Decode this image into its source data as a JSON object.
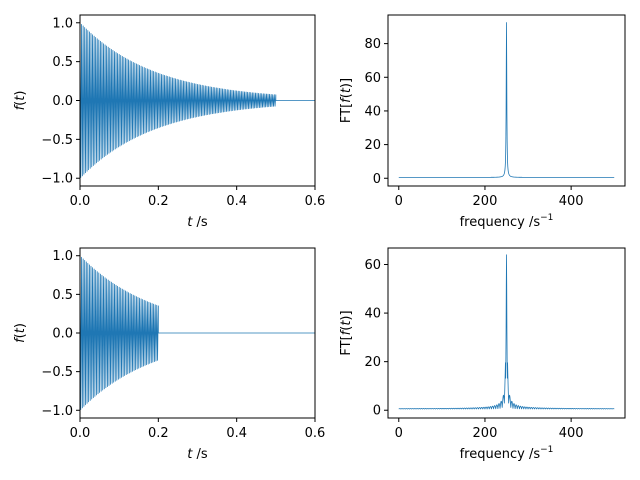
{
  "colors": {
    "series": "#1f77b4",
    "axes": "#000000",
    "background": "#ffffff"
  },
  "chart_data": [
    {
      "id": "time-top",
      "type": "line",
      "title": "",
      "xlabel_italic": "t",
      "xlabel_unit": " /s",
      "ylabel": "f(t)",
      "xlim": [
        0,
        0.6
      ],
      "ylim": [
        -1.1,
        1.1
      ],
      "xticks": [
        0,
        0.2,
        0.4,
        0.6
      ],
      "xtick_labels": [
        "0.0",
        "0.2",
        "0.4",
        "0.6"
      ],
      "yticks": [
        -1.0,
        -0.5,
        0.0,
        0.5,
        1.0
      ],
      "ytick_labels": [
        "−1.0",
        "−0.5",
        "0.0",
        "0.5",
        "1.0"
      ],
      "grid": false,
      "series": [
        {
          "kind": "damped_cosine",
          "amplitude": 1.0,
          "frequency_hz": 250,
          "decay_time_s": 0.191,
          "signal_end_s": 0.5,
          "display_end_s": 0.6,
          "envelope_samples": [
            {
              "t": 0.0,
              "amplitude": 1.0
            },
            {
              "t": 0.1,
              "amplitude": 0.59
            },
            {
              "t": 0.2,
              "amplitude": 0.35
            },
            {
              "t": 0.3,
              "amplitude": 0.21
            },
            {
              "t": 0.4,
              "amplitude": 0.12
            },
            {
              "t": 0.5,
              "amplitude": 0.07
            }
          ]
        }
      ]
    },
    {
      "id": "freq-top",
      "type": "line",
      "title": "",
      "xlabel": "frequency /s",
      "xlabel_sup": "−1",
      "ylabel": "FT[f(t)]",
      "xlim": [
        -25,
        525
      ],
      "ylim": [
        -4.6,
        97
      ],
      "xticks": [
        0,
        200,
        400
      ],
      "xtick_labels": [
        "0",
        "200",
        "400"
      ],
      "yticks": [
        0,
        20,
        40,
        60,
        80
      ],
      "ytick_labels": [
        "0",
        "20",
        "40",
        "60",
        "80"
      ],
      "grid": false,
      "series": [
        {
          "kind": "spectrum_lorentzian",
          "peak_frequency": 250,
          "peak_value": 92.5,
          "half_width": 0.83,
          "baseline": 0.5,
          "side_ripple": false,
          "x_range": [
            0,
            500
          ]
        }
      ]
    },
    {
      "id": "time-bottom",
      "type": "line",
      "title": "",
      "xlabel_italic": "t",
      "xlabel_unit": " /s",
      "ylabel": "f(t)",
      "xlim": [
        0,
        0.6
      ],
      "ylim": [
        -1.1,
        1.1
      ],
      "xticks": [
        0,
        0.2,
        0.4,
        0.6
      ],
      "xtick_labels": [
        "0.0",
        "0.2",
        "0.4",
        "0.6"
      ],
      "yticks": [
        -1.0,
        -0.5,
        0.0,
        0.5,
        1.0
      ],
      "ytick_labels": [
        "−1.0",
        "−0.5",
        "0.0",
        "0.5",
        "1.0"
      ],
      "grid": false,
      "series": [
        {
          "kind": "damped_cosine",
          "amplitude": 1.0,
          "frequency_hz": 250,
          "decay_time_s": 0.191,
          "signal_end_s": 0.2,
          "display_end_s": 0.6,
          "envelope_samples": [
            {
              "t": 0.0,
              "amplitude": 1.0
            },
            {
              "t": 0.1,
              "amplitude": 0.59
            },
            {
              "t": 0.2,
              "amplitude": 0.35
            }
          ]
        }
      ]
    },
    {
      "id": "freq-bottom",
      "type": "line",
      "title": "",
      "xlabel": "frequency /s",
      "xlabel_sup": "−1",
      "ylabel": "FT[f(t)]",
      "xlim": [
        -25,
        525
      ],
      "ylim": [
        -3.2,
        66.8
      ],
      "xticks": [
        0,
        200,
        400
      ],
      "xtick_labels": [
        "0",
        "200",
        "400"
      ],
      "yticks": [
        0,
        20,
        40,
        60
      ],
      "ytick_labels": [
        "0",
        "20",
        "40",
        "60"
      ],
      "grid": false,
      "series": [
        {
          "kind": "spectrum_lorentzian",
          "peak_frequency": 250,
          "peak_value": 64,
          "half_width": 1.0,
          "baseline": 0.5,
          "side_ripple": true,
          "ripple_period": 5,
          "x_range": [
            0,
            500
          ]
        }
      ]
    }
  ]
}
